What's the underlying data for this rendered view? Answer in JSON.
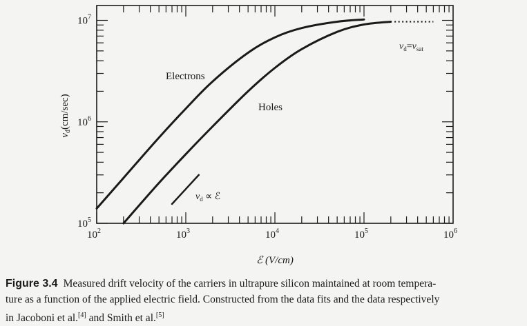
{
  "chart_data": {
    "type": "line",
    "title": "",
    "xlabel": "ℰ (V/cm)",
    "ylabel": "v_d (cm/sec)",
    "x_scale": "log",
    "y_scale": "log",
    "xlim": [
      100,
      1000000
    ],
    "ylim": [
      100000,
      14000000
    ],
    "grid": false,
    "x_tick_labels": [
      "10",
      "10",
      "10",
      "10",
      "10"
    ],
    "x_tick_exponents": [
      "2",
      "3",
      "4",
      "5",
      "6"
    ],
    "x_tick_values": [
      100,
      1000,
      10000,
      100000,
      1000000
    ],
    "y_tick_labels": [
      "10",
      "10",
      "10"
    ],
    "y_tick_exponents": [
      "5",
      "6",
      "7"
    ],
    "y_tick_values": [
      100000,
      1000000,
      10000000
    ],
    "series": [
      {
        "name": "Electrons",
        "x": [
          100,
          200,
          500,
          1000,
          2000,
          5000,
          10000,
          20000,
          50000,
          100000
        ],
        "y": [
          140000,
          280000,
          700000,
          1350000,
          2500000,
          4800000,
          6800000,
          8400000,
          9700000,
          10200000
        ]
      },
      {
        "name": "Holes",
        "x": [
          200,
          500,
          1000,
          2000,
          5000,
          10000,
          20000,
          50000,
          100000,
          200000
        ],
        "y": [
          100000,
          250000,
          480000,
          900000,
          2000000,
          3400000,
          5200000,
          7700000,
          9100000,
          9700000
        ]
      }
    ],
    "annotations": [
      {
        "text": "v_d ∝ ℰ",
        "segment_x": [
          700,
          1400
        ],
        "segment_y": [
          155000,
          300000
        ]
      },
      {
        "text": "v_d = v_sat",
        "dotted_x": [
          220000,
          600000
        ],
        "dotted_y": [
          9700000,
          9700000
        ]
      }
    ]
  },
  "caption": {
    "label": "Figure 3.4",
    "line1": "Measured drift velocity of the carriers in ultrapure silicon maintained at room tempera-",
    "line2": "ture as a function of the applied electric field. Constructed from the data fits and the data respectively",
    "line3_pre": "in Jacoboni et al.",
    "ref1": "[4]",
    "line3_mid": " and Smith et al.",
    "ref2": "[5]"
  }
}
